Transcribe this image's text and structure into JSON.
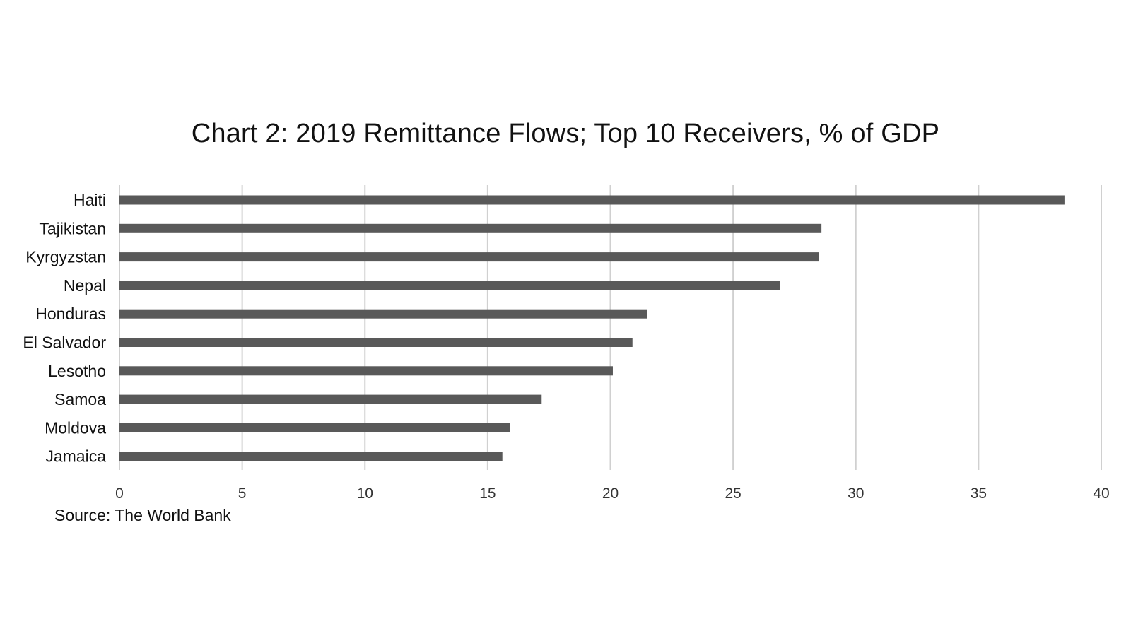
{
  "chart_data": {
    "type": "bar",
    "orientation": "horizontal",
    "title": "Chart 2:  2019 Remittance Flows; Top 10 Receivers, % of GDP",
    "categories": [
      "Haiti",
      "Tajikistan",
      "Kyrgyzstan",
      "Nepal",
      "Honduras",
      "El Salvador",
      "Lesotho",
      "Samoa",
      "Moldova",
      "Jamaica"
    ],
    "values": [
      38.5,
      28.6,
      28.5,
      26.9,
      21.5,
      20.9,
      20.1,
      17.2,
      15.9,
      15.6
    ],
    "xlim": [
      0,
      40
    ],
    "xticks": [
      0,
      5,
      10,
      15,
      20,
      25,
      30,
      35,
      40
    ],
    "xlabel": "",
    "ylabel": "",
    "grid": "vertical",
    "bar_color": "#595959",
    "grid_color": "#d0d0d0",
    "source": "Source: The World Bank"
  }
}
